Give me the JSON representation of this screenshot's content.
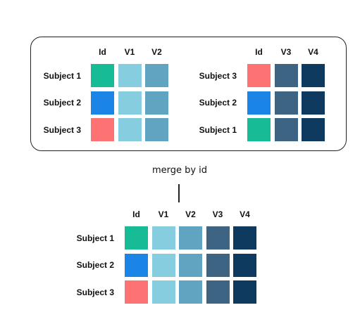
{
  "colors": {
    "teal": "#17BC96",
    "blue": "#1A85E6",
    "salmon": "#FD7272",
    "v1": "#86CDE0",
    "v2": "#61A4C1",
    "v3": "#3E6484",
    "v4": "#0E3A5F"
  },
  "tables": [
    {
      "id": "left",
      "columns": [
        "Id",
        "V1",
        "V2"
      ],
      "rows": [
        {
          "label": "Subject 1",
          "cells": [
            "teal",
            "v1",
            "v2"
          ]
        },
        {
          "label": "Subject 2",
          "cells": [
            "blue",
            "v1",
            "v2"
          ]
        },
        {
          "label": "Subject 3",
          "cells": [
            "salmon",
            "v1",
            "v2"
          ]
        }
      ]
    },
    {
      "id": "right",
      "columns": [
        "Id",
        "V3",
        "V4"
      ],
      "rows": [
        {
          "label": "Subject 3",
          "cells": [
            "salmon",
            "v3",
            "v4"
          ]
        },
        {
          "label": "Subject 2",
          "cells": [
            "blue",
            "v3",
            "v4"
          ]
        },
        {
          "label": "Subject 1",
          "cells": [
            "teal",
            "v3",
            "v4"
          ]
        }
      ]
    },
    {
      "id": "merged",
      "columns": [
        "Id",
        "V1",
        "V2",
        "V3",
        "V4"
      ],
      "rows": [
        {
          "label": "Subject 1",
          "cells": [
            "teal",
            "v1",
            "v2",
            "v3",
            "v4"
          ]
        },
        {
          "label": "Subject 2",
          "cells": [
            "blue",
            "v1",
            "v2",
            "v3",
            "v4"
          ]
        },
        {
          "label": "Subject 3",
          "cells": [
            "salmon",
            "v1",
            "v2",
            "v3",
            "v4"
          ]
        }
      ]
    }
  ],
  "merge_label": "merge by id"
}
